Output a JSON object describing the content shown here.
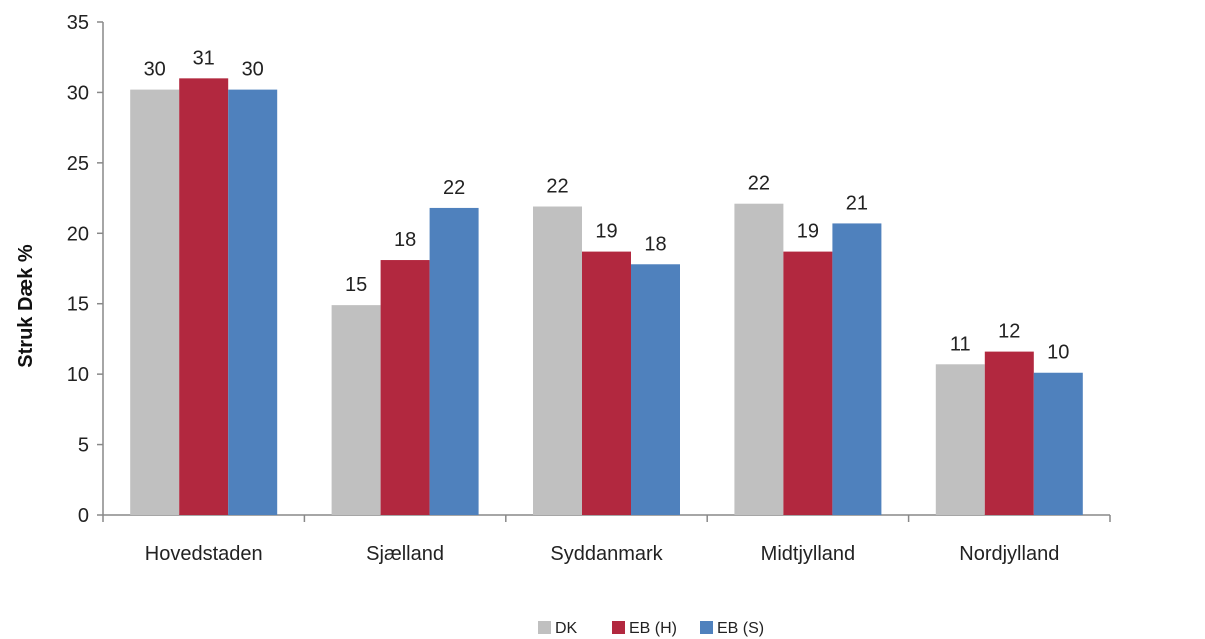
{
  "chart_data": {
    "type": "bar",
    "title": "",
    "xlabel": "",
    "ylabel": "Struk Dæk %",
    "ylim": [
      0,
      35
    ],
    "yticks": [
      0,
      5,
      10,
      15,
      20,
      25,
      30,
      35
    ],
    "grid": false,
    "legend_position": "bottom",
    "categories": [
      "Hovedstaden",
      "Sjælland",
      "Syddanmark",
      "Midtjylland",
      "Nordjylland"
    ],
    "series": [
      {
        "name": "DK",
        "color": "#c0c0c0",
        "values": [
          30.2,
          14.9,
          21.9,
          22.1,
          10.7
        ],
        "labels": [
          "30",
          "15",
          "22",
          "22",
          "11"
        ]
      },
      {
        "name": "EB (H)",
        "color": "#b2283f",
        "values": [
          31.0,
          18.1,
          18.7,
          18.7,
          11.6
        ],
        "labels": [
          "31",
          "18",
          "19",
          "19",
          "12"
        ]
      },
      {
        "name": "EB (S)",
        "color": "#4f81bd",
        "values": [
          30.2,
          21.8,
          17.8,
          20.7,
          10.1
        ],
        "labels": [
          "30",
          "22",
          "18",
          "21",
          "10"
        ]
      }
    ]
  }
}
